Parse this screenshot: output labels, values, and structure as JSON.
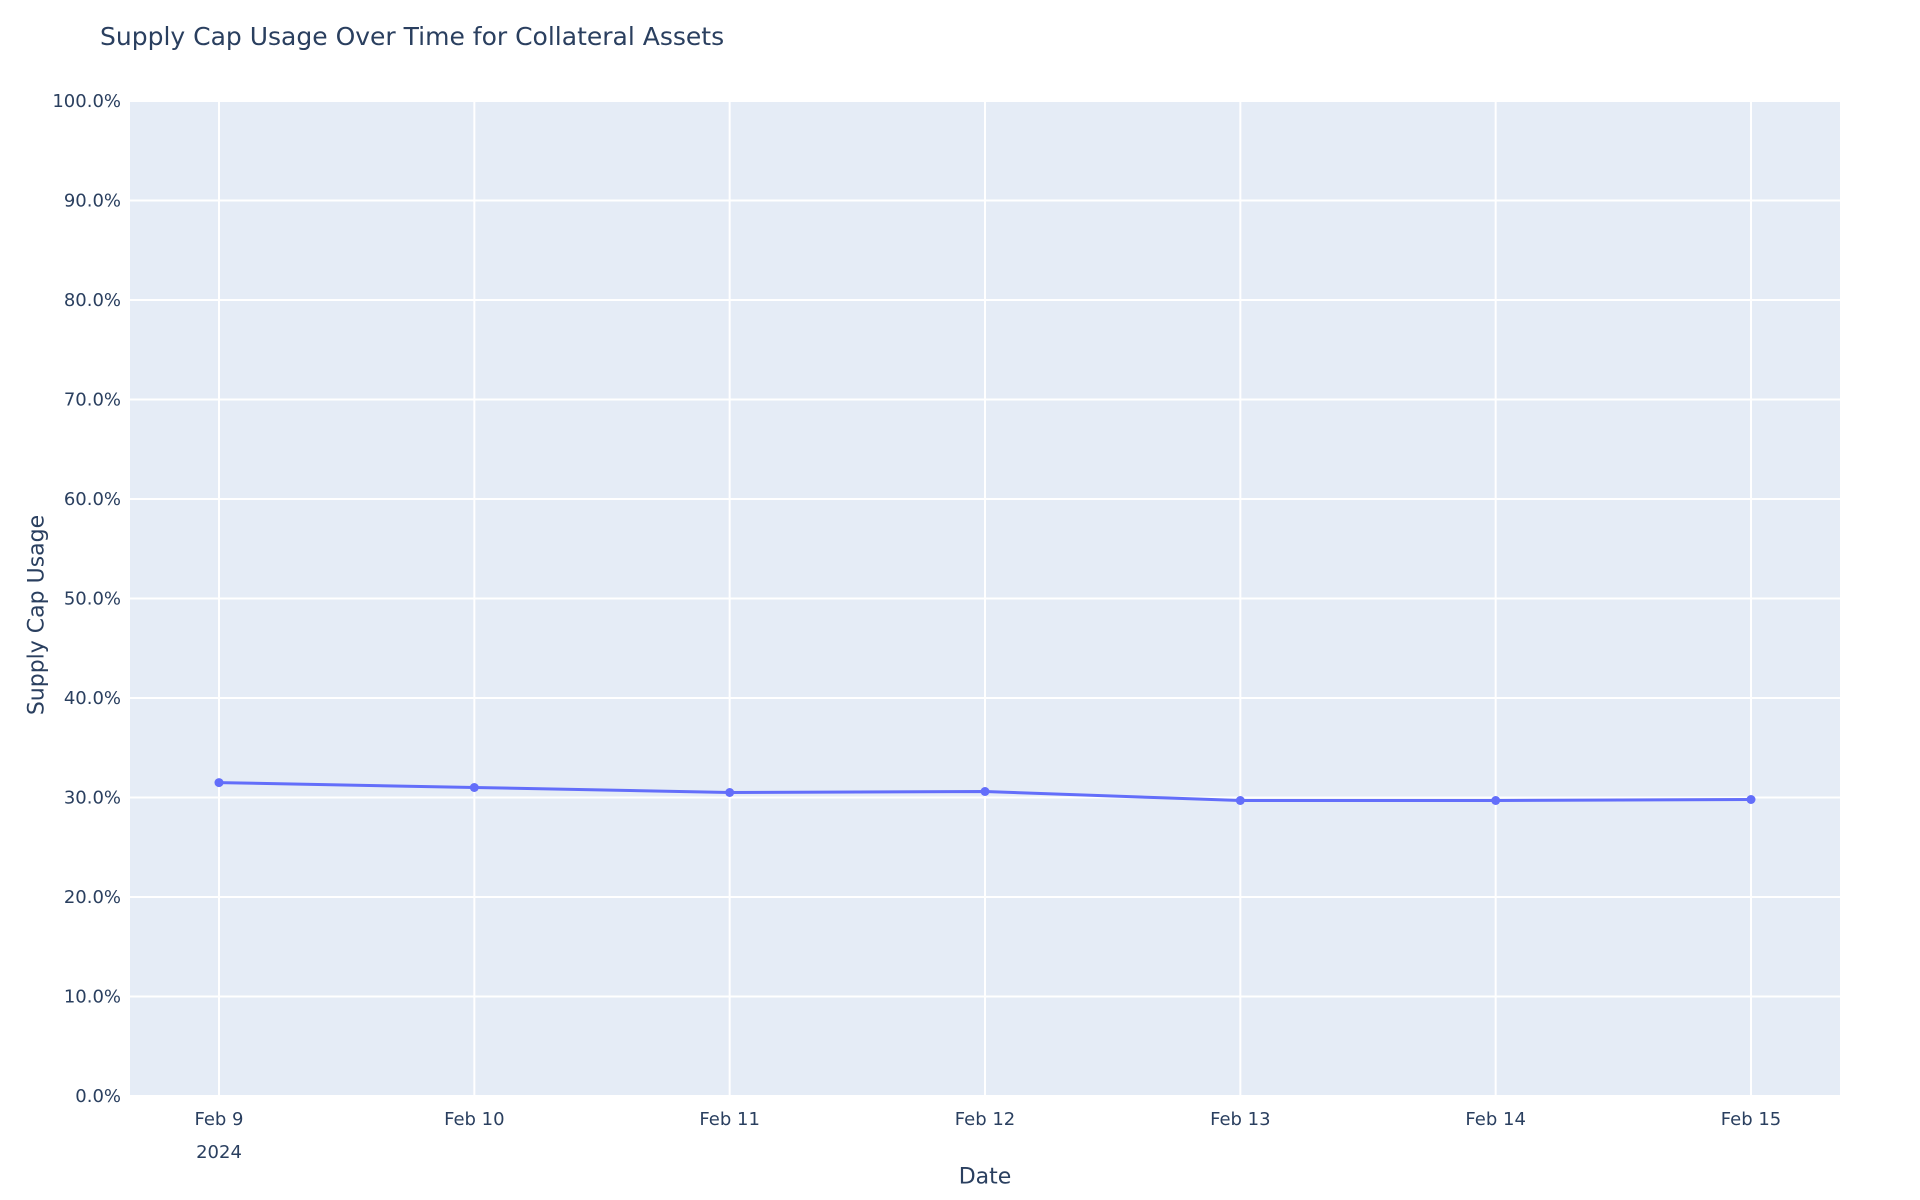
{
  "chart_data": {
    "type": "line",
    "title": "Supply Cap Usage Over Time for Collateral Assets",
    "xlabel": "Date",
    "ylabel": "Supply Cap Usage",
    "categories": [
      "Feb 9",
      "Feb 10",
      "Feb 11",
      "Feb 12",
      "Feb 13",
      "Feb 14",
      "Feb 15"
    ],
    "x_year_sublabel": "2024",
    "values": [
      31.5,
      31.0,
      30.5,
      30.6,
      29.7,
      29.7,
      29.8
    ],
    "ylim": [
      0,
      100
    ],
    "y_tick_labels": [
      "0.0%",
      "10.0%",
      "20.0%",
      "30.0%",
      "40.0%",
      "50.0%",
      "60.0%",
      "70.0%",
      "80.0%",
      "90.0%",
      "100.0%"
    ],
    "grid": true,
    "legend": "none",
    "line_shape": "spline",
    "markers": true,
    "colors": {
      "line": "#636efa",
      "marker": "#636efa",
      "plot_background": "#e5ecf6",
      "paper_background": "#ffffff",
      "gridline": "#ffffff",
      "text": "#2a3f5f"
    }
  }
}
